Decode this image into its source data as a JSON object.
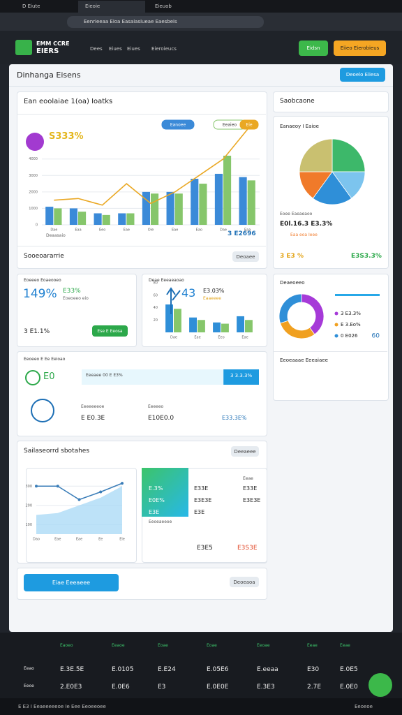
{
  "browser": {
    "tabs": [
      "D Eiute",
      "Eieoie",
      "Eieuob"
    ],
    "url": "Eenrieeaa Eioa Easaiasiueae Eaesbeis"
  },
  "app": {
    "logo": [
      "EMM CCRE",
      "EIERS"
    ],
    "nav": [
      "Dees",
      "Eiues",
      "Eiues",
      "Eieroieucs"
    ],
    "buttons": [
      "Eidsn",
      "Eiieo Eierobieus"
    ]
  },
  "page": {
    "title": "Dinhanga Eisens",
    "button": "Deoelo Eiiesa"
  },
  "chart_data": [
    {
      "type": "bar",
      "title": "Ean eoolaiae 1(oa) Ioatks",
      "headline": "S333%",
      "total": "3 E2696",
      "x_label": "Deaasaio",
      "categories": [
        "Dae",
        "Eaa",
        "Eeo",
        "Eae",
        "Oie",
        "Eae",
        "Eao",
        "Dae",
        "Eaa"
      ],
      "series": [
        {
          "name": "Eanoee",
          "color": "#3b8ad8",
          "values": [
            1100,
            1000,
            700,
            700,
            2000,
            2000,
            2800,
            3100,
            2900
          ]
        },
        {
          "name": "Eeaieo",
          "color": "#86c66b",
          "values": [
            1000,
            800,
            600,
            700,
            1900,
            1900,
            2500,
            4200,
            2700
          ]
        },
        {
          "name": "Eie",
          "color": "#eaa824",
          "type": "line",
          "values": [
            1500,
            1600,
            1200,
            2500,
            1300,
            2000,
            3000,
            4000,
            5800
          ]
        }
      ],
      "ylim": [
        0,
        5600
      ],
      "yticks": [
        0,
        1000,
        2000,
        3000,
        4000
      ],
      "grid": true
    },
    {
      "type": "pie",
      "title": "Eanaeoy I Eaioe",
      "categories": [
        "Eoee",
        "Eaa",
        "Ieee",
        "Eoa",
        "Eeae"
      ],
      "values": [
        25,
        15,
        20,
        15,
        25
      ],
      "colors": [
        "#3db86a",
        "#7cc4ee",
        "#2f8fd8",
        "#f07a2a",
        "#c9c070"
      ]
    },
    {
      "type": "bar",
      "title": "Deae Eeeaeaoao",
      "headline": "43",
      "change": "E3.03%",
      "note": "Eaaeeee",
      "categories": [
        "Dae",
        "Eae",
        "Eeo",
        "Eae"
      ],
      "series": [
        {
          "name": "Eao",
          "color": "#2f8fd8",
          "values": [
            45,
            24,
            16,
            26
          ]
        },
        {
          "name": "Eoe",
          "color": "#86c66b",
          "values": [
            38,
            20,
            14,
            20
          ]
        }
      ],
      "ylim": [
        0,
        80
      ],
      "yticks": [
        20,
        40,
        60,
        80
      ],
      "grid": false
    },
    {
      "type": "donut",
      "title": "Deaeoeeo",
      "categories": [
        "3 E3.3%",
        "E 3.Eo%",
        "0 E026"
      ],
      "values": [
        40,
        30,
        30
      ],
      "colors": [
        "#a63ad8",
        "#f0a020",
        "#2f8fd8"
      ],
      "extra": "60"
    },
    {
      "type": "area",
      "title": "Sailaseorrd sbotahes",
      "categories": [
        "Dao",
        "Eae",
        "Eae",
        "Ee",
        "Eie"
      ],
      "series": [
        {
          "name": "Eiae",
          "color": "#3a7db8",
          "values": [
            300,
            300,
            230,
            270,
            315
          ]
        },
        {
          "name": "Eoe",
          "color": "#a7d8f5",
          "values": [
            150,
            160,
            200,
            240,
            300
          ]
        }
      ],
      "ylim": [
        50,
        330
      ],
      "yticks": [
        100,
        200,
        300
      ],
      "grid": true
    }
  ],
  "cards": {
    "main_footer": {
      "title": "Sooeoararrie",
      "button": "Deoaee"
    },
    "side_header": "Saobcaone",
    "pie_legend": [
      "Eoee Eaeaeaoo",
      "E0l.16.3 E3.3%",
      "Eaa eoa Ieee",
      "3 E3 %",
      "E3S3.3%"
    ],
    "kpi": {
      "title": "Eoeeeo Eoaeooeo",
      "big": "149%",
      "change": "E33%",
      "note": "Eoeoeeo eio",
      "foot": "3 E1.1%",
      "button": "Ese E Eeosa"
    },
    "progress": {
      "title": "Eeoeeo E Ee Eeioao",
      "big": "E0",
      "label": "Eeeaee 00 E E3%",
      "status": "3 3.3.3%",
      "value": 80,
      "items": [
        "Eeeeeeeoe",
        "E E0.3E",
        "Eeeeeo",
        "E10E0.0",
        "E33.3E%"
      ]
    },
    "table": {
      "header": [
        "Eeae"
      ],
      "rows": [
        [
          "E.3%",
          "E33E",
          "E33E"
        ],
        [
          "E0E%",
          "E3E3E",
          "E3E3E"
        ],
        [
          "E3E",
          "E3E"
        ]
      ],
      "total": [
        "E3E5",
        "E3S3E"
      ],
      "caption": "Eeoeaeeoe",
      "button": "Deeaeee"
    },
    "services": "Eeoeaaae Eeeaiaee",
    "cta": {
      "button": "Eiae Eeeaeee",
      "link": "Deoeaoa"
    }
  },
  "footer": {
    "headers": [
      "Eaoeo",
      "Eeaoe",
      "Eoae",
      "Eoae",
      "Eeoae",
      "Eeae",
      "Eeae"
    ],
    "rows": [
      [
        "Eeao",
        "E.3E.5E",
        "E.0105",
        "E.E24",
        "E.05E6",
        "E.eeaa",
        "E30",
        "E.0E5"
      ],
      [
        "Eeoe",
        "2.E0E3",
        "E.0E6",
        "E3",
        "E.0E0E",
        "E.3E3",
        "2.7E",
        "E.0E0"
      ]
    ],
    "status": "E E3 I Eeaeeeeeoe Ie Eee Eeoeeoee",
    "right": "Eeoeoe"
  }
}
